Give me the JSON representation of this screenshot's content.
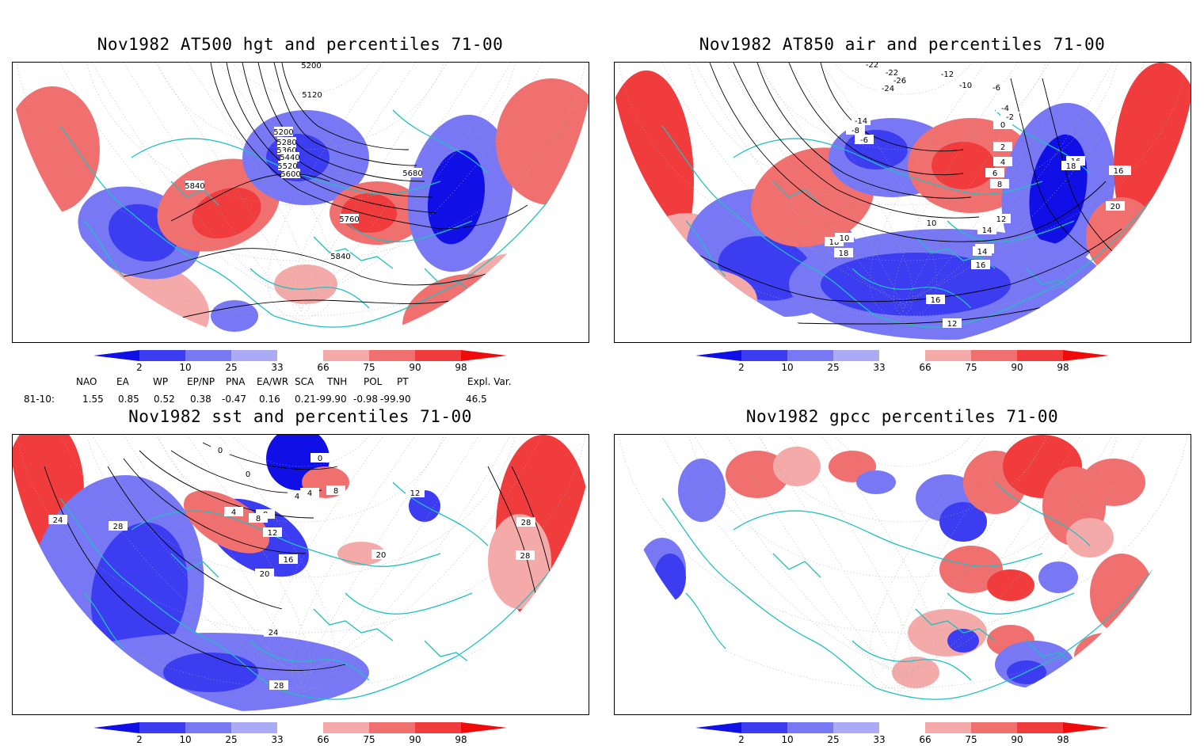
{
  "colors": {
    "bin_colors": [
      "#1010e6",
      "#3c3cf0",
      "#7878f5",
      "#aaaaf5",
      "#ffffff",
      "#f5aaaa",
      "#f07070",
      "#f03c3c",
      "#f00a0a"
    ],
    "coastline": "#20c0c0",
    "contour": "#000000"
  },
  "colorbar": {
    "tick_labels": [
      "2",
      "10",
      "25",
      "33",
      "66",
      "75",
      "90",
      "98"
    ]
  },
  "panels": [
    {
      "id": "hgt500",
      "title": "Nov1982 AT500 hgt and percentiles 71-00",
      "contour_labels": [
        "5200",
        "5120",
        "5200",
        "5280",
        "5360",
        "5440",
        "5520",
        "5600",
        "5680",
        "5760",
        "5840",
        "5840"
      ]
    },
    {
      "id": "air850",
      "title": "Nov1982 AT850 air and percentiles 71-00",
      "contour_labels": [
        "-22",
        "-22",
        "-26",
        "-24",
        "-12",
        "-10",
        "-6",
        "-4",
        "-2",
        "0",
        "-14",
        "-8",
        "-6",
        "2",
        "4",
        "6",
        "8",
        "10",
        "12",
        "14",
        "16",
        "18",
        "20",
        "18",
        "16",
        "18",
        "18",
        "16",
        "12",
        "14",
        "10",
        "18",
        "16"
      ]
    },
    {
      "id": "sst",
      "title": "Nov1982 sst and percentiles 71-00",
      "contour_labels": [
        "0",
        "0",
        "0",
        "4",
        "4",
        "8",
        "8",
        "4",
        "8",
        "12",
        "16",
        "20",
        "24",
        "28",
        "28",
        "24",
        "28",
        "28",
        "20",
        "12"
      ]
    },
    {
      "id": "gpcc",
      "title": "Nov1982 gpcc percentiles 71-00",
      "contour_labels": []
    }
  ],
  "indices": {
    "headers": [
      "NAO",
      "EA",
      "WP",
      "EP/NP",
      "PNA",
      "EA/WR",
      "SCA",
      "TNH",
      "POL",
      "PT",
      "Expl. Var."
    ],
    "row_label": "81-10:",
    "values": [
      "1.55",
      "0.85",
      "0.52",
      "0.38",
      "-0.47",
      "0.16",
      "0.21",
      "-99.90",
      "-0.98",
      "-99.90",
      "46.5"
    ]
  }
}
